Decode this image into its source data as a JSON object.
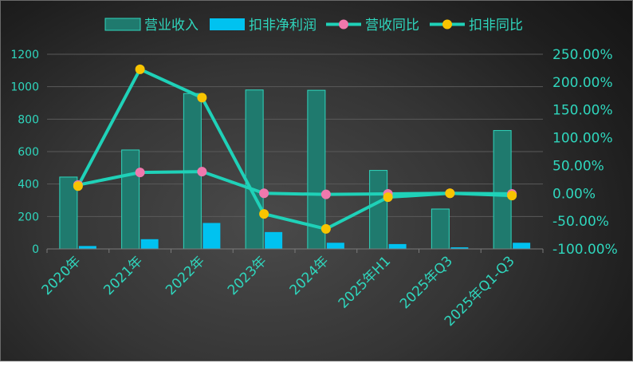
{
  "chart_data": {
    "type": "bar",
    "categories": [
      "2020年",
      "2021年",
      "2022年",
      "2023年",
      "2024年",
      "2025年H1",
      "2025年Q3",
      "2025年Q1-Q3"
    ],
    "series": [
      {
        "name": "营业收入",
        "kind": "bar",
        "axis": "left",
        "values": [
          443,
          610,
          958,
          980,
          978,
          484,
          246,
          730
        ]
      },
      {
        "name": "扣非净利润",
        "kind": "bar",
        "axis": "left",
        "values": [
          18,
          60,
          160,
          104,
          38,
          30,
          10,
          38
        ]
      },
      {
        "name": "营收同比",
        "kind": "line",
        "axis": "right",
        "values": [
          15,
          37.5,
          39,
          0,
          -2,
          -1,
          0,
          -1
        ]
      },
      {
        "name": "扣非同比",
        "kind": "line",
        "axis": "right",
        "values": [
          13,
          223,
          172,
          -37,
          -64,
          -7,
          0,
          -4
        ]
      }
    ],
    "left_axis": {
      "min": 0,
      "max": 1200,
      "ticks": [
        "0",
        "200",
        "400",
        "600",
        "800",
        "1000",
        "1200"
      ]
    },
    "right_axis": {
      "min": -100,
      "max": 250,
      "ticks": [
        "-100.00%",
        "-50.00%",
        "0.00%",
        "50.00%",
        "100.00%",
        "150.00%",
        "200.00%",
        "250.00%"
      ]
    },
    "legend": {
      "position": "top-right"
    },
    "grid": true,
    "colors": {
      "revenue_bar": "#1f7a6e",
      "revenue_border": "#2fd6bd",
      "profit_bar": "#00c2f0",
      "line": "#1fd1b8",
      "revenue_marker": "#ef78ad",
      "profit_marker": "#f8c400",
      "grid": "#5a5a5a",
      "text": "#2fd6bd"
    }
  }
}
